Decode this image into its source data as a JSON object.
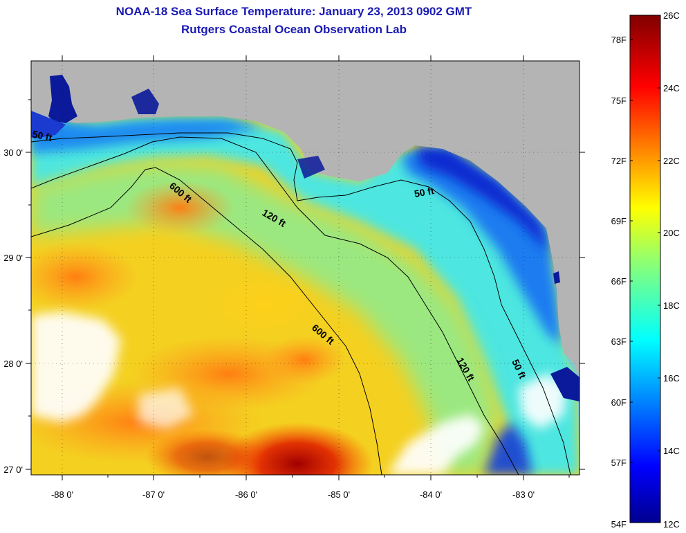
{
  "title": "NOAA-18 Sea Surface Temperature:  January 23, 2013 0902 GMT",
  "subtitle": "Rutgers Coastal Ocean Observation Lab",
  "colors": {
    "title": "#1a1ab4",
    "land": "#b4b4b4",
    "cloud": "#ffffff",
    "coast": "#0a1a9a"
  },
  "axes": {
    "x_ticks": [
      "-88 0'",
      "-87 0'",
      "-86 0'",
      "-85 0'",
      "-84 0'",
      "-83 0'"
    ],
    "y_ticks": [
      "30 0'",
      "29 0'",
      "28 0'",
      "27 0'"
    ]
  },
  "contour_labels": [
    "50 ft",
    "600 ft",
    "120 ft",
    "50 ft",
    "600 ft",
    "120 ft",
    "50 ft"
  ],
  "colorbar": {
    "fahrenheit_labels": [
      "78F",
      "75F",
      "72F",
      "69F",
      "66F",
      "63F",
      "60F",
      "57F",
      "54F"
    ],
    "celsius_labels": [
      "26C",
      "24C",
      "22C",
      "20C",
      "18C",
      "16C",
      "14C",
      "12C"
    ],
    "range_c": [
      12,
      26
    ],
    "colormap": "jet"
  }
}
